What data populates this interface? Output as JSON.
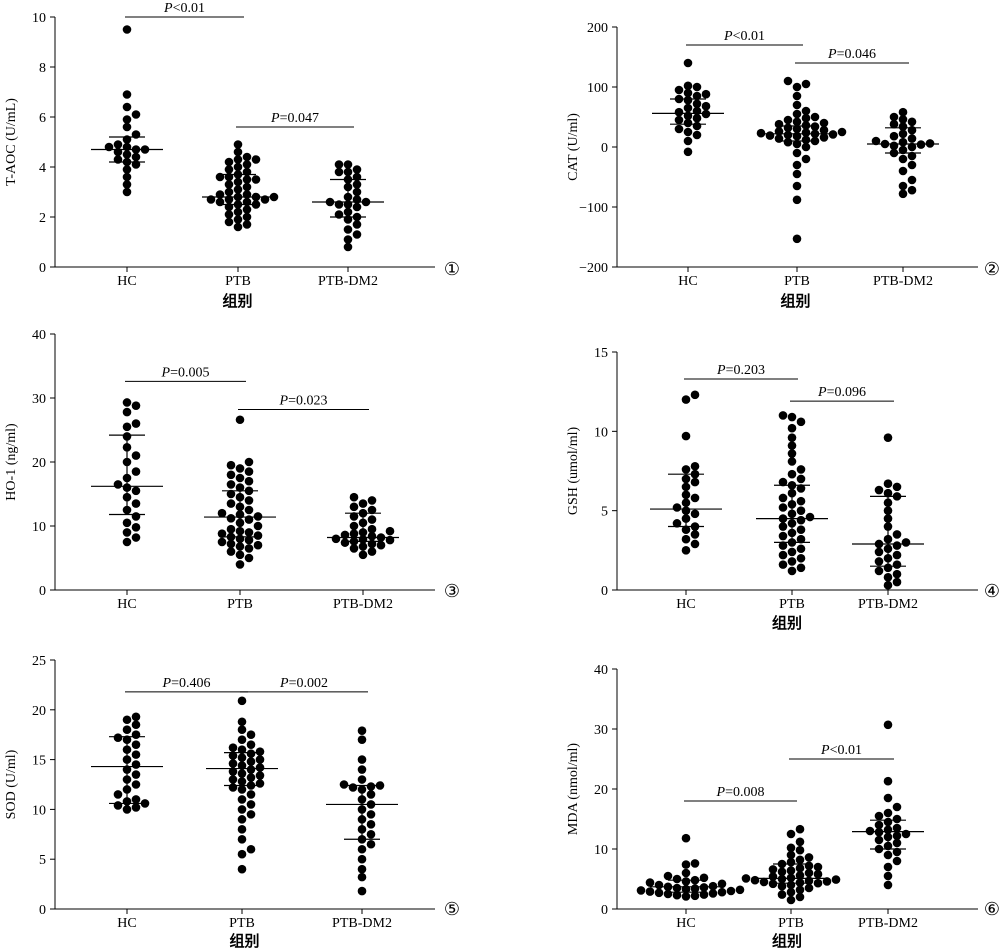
{
  "chart_data": [
    {
      "type": "scatter",
      "panel_label": "①",
      "ylabel": "T-AOC (U/mL)",
      "xlabel": "组别",
      "categories": [
        "HC",
        "PTB",
        "PTB-DM2"
      ],
      "ylim": [
        0,
        10
      ],
      "yticks": [
        "0",
        "2",
        "4",
        "6",
        "8",
        "10"
      ],
      "groups": [
        {
          "name": "HC",
          "median": 4.7,
          "q1": 4.2,
          "q3": 5.2,
          "values": [
            9.5,
            6.9,
            6.4,
            6.1,
            5.9,
            5.6,
            5.3,
            5.1,
            4.9,
            4.8,
            4.8,
            4.7,
            4.7,
            4.6,
            4.5,
            4.4,
            4.3,
            4.2,
            4.1,
            3.9,
            3.6,
            3.3,
            3.0
          ]
        },
        {
          "name": "PTB",
          "median": 2.8,
          "q1": 2.5,
          "q3": 3.7,
          "values": [
            4.9,
            4.6,
            4.4,
            4.3,
            4.3,
            4.2,
            4.1,
            4.0,
            3.9,
            3.8,
            3.7,
            3.6,
            3.6,
            3.5,
            3.5,
            3.4,
            3.3,
            3.2,
            3.1,
            3.0,
            2.9,
            2.9,
            2.8,
            2.8,
            2.8,
            2.7,
            2.7,
            2.7,
            2.6,
            2.6,
            2.5,
            2.5,
            2.4,
            2.3,
            2.2,
            2.1,
            2.0,
            1.9,
            1.8,
            1.7,
            1.6
          ]
        },
        {
          "name": "PTB-DM2",
          "median": 2.6,
          "q1": 2.0,
          "q3": 3.5,
          "values": [
            4.1,
            4.1,
            3.9,
            3.8,
            3.8,
            3.6,
            3.5,
            3.3,
            3.2,
            3.0,
            2.8,
            2.7,
            2.6,
            2.6,
            2.5,
            2.5,
            2.4,
            2.2,
            2.1,
            2.0,
            1.9,
            1.7,
            1.5,
            1.3,
            1.1,
            0.8
          ]
        }
      ],
      "comparisons": [
        {
          "from": "HC",
          "to": "PTB",
          "y": 10.0,
          "label_pre": "P",
          "label_post": "<0.01"
        },
        {
          "from": "PTB",
          "to": "PTB-DM2",
          "y": 5.6,
          "label_pre": "P",
          "label_post": "=0.047"
        }
      ]
    },
    {
      "type": "scatter",
      "panel_label": "②",
      "ylabel": "CAT (U/ml)",
      "xlabel": "组别",
      "categories": [
        "HC",
        "PTB",
        "PTB-DM2"
      ],
      "ylim": [
        -200,
        200
      ],
      "yticks": [
        "−200",
        "−100",
        "0",
        "100",
        "200"
      ],
      "groups": [
        {
          "name": "HC",
          "median": 56,
          "q1": 38,
          "q3": 80,
          "values": [
            140,
            102,
            100,
            95,
            90,
            88,
            85,
            80,
            78,
            72,
            68,
            65,
            60,
            58,
            55,
            52,
            48,
            45,
            40,
            35,
            30,
            25,
            20,
            10,
            -8
          ]
        },
        {
          "name": "PTB",
          "median": 22,
          "q1": 10,
          "q3": 35,
          "values": [
            110,
            105,
            100,
            85,
            70,
            60,
            55,
            50,
            48,
            45,
            42,
            40,
            38,
            36,
            34,
            32,
            30,
            28,
            26,
            25,
            24,
            23,
            22,
            21,
            20,
            19,
            18,
            16,
            14,
            12,
            10,
            8,
            5,
            0,
            -10,
            -20,
            -30,
            -45,
            -65,
            -88,
            -153
          ]
        },
        {
          "name": "PTB-DM2",
          "median": 5,
          "q1": -10,
          "q3": 32,
          "values": [
            58,
            50,
            46,
            42,
            38,
            34,
            28,
            22,
            18,
            14,
            10,
            8,
            6,
            5,
            4,
            2,
            0,
            -5,
            -10,
            -15,
            -20,
            -30,
            -40,
            -55,
            -65,
            -72,
            -78
          ]
        }
      ],
      "comparisons": [
        {
          "from": "HC",
          "to": "PTB",
          "y": 170,
          "label_pre": "P",
          "label_post": "<0.01"
        },
        {
          "from": "PTB",
          "to": "PTB-DM2",
          "y": 140,
          "label_pre": "P",
          "label_post": "=0.046"
        }
      ]
    },
    {
      "type": "scatter",
      "panel_label": "③",
      "ylabel": "HO-1 (ng/ml)",
      "xlabel": "",
      "categories": [
        "HC",
        "PTB",
        "PTB-DM2"
      ],
      "ylim": [
        0,
        40
      ],
      "yticks": [
        "0",
        "10",
        "20",
        "30",
        "40"
      ],
      "groups": [
        {
          "name": "HC",
          "median": 16.2,
          "q1": 11.8,
          "q3": 24.2,
          "values": [
            29.3,
            28.8,
            27.8,
            26.0,
            25.5,
            24.0,
            22.3,
            21.0,
            20.0,
            18.5,
            17.5,
            16.5,
            16.0,
            15.5,
            14.5,
            13.5,
            12.5,
            11.5,
            10.5,
            9.8,
            9.0,
            8.2,
            7.5
          ]
        },
        {
          "name": "PTB",
          "median": 11.4,
          "q1": 8.3,
          "q3": 15.5,
          "values": [
            26.6,
            20.0,
            19.5,
            19.0,
            18.5,
            18.0,
            17.5,
            17.0,
            16.5,
            16.0,
            15.5,
            15.0,
            14.5,
            14.0,
            13.5,
            13.0,
            12.5,
            12.0,
            11.8,
            11.5,
            11.2,
            11.0,
            10.5,
            10.0,
            9.5,
            9.2,
            9.0,
            8.8,
            8.5,
            8.3,
            8.0,
            7.8,
            7.5,
            7.2,
            7.0,
            6.8,
            6.5,
            6.0,
            5.5,
            5.0,
            4.0
          ]
        },
        {
          "name": "PTB-DM2",
          "median": 8.2,
          "q1": 7.6,
          "q3": 12.0,
          "values": [
            14.5,
            14.0,
            13.5,
            13.0,
            12.5,
            12.0,
            11.5,
            11.0,
            10.5,
            10.0,
            9.5,
            9.2,
            9.0,
            8.8,
            8.6,
            8.4,
            8.2,
            8.0,
            7.9,
            7.8,
            7.6,
            7.4,
            7.2,
            7.0,
            6.8,
            6.5,
            6.0,
            5.5
          ]
        }
      ],
      "comparisons": [
        {
          "from": "HC",
          "to": "PTB",
          "y": 32.6,
          "label_pre": "P",
          "label_post": "=0.005"
        },
        {
          "from": "PTB",
          "to": "PTB-DM2",
          "y": 28.2,
          "label_pre": "P",
          "label_post": "=0.023"
        }
      ]
    },
    {
      "type": "scatter",
      "panel_label": "④",
      "ylabel": "GSH (umol/ml)",
      "xlabel": "组别",
      "categories": [
        "HC",
        "PTB",
        "PTB-DM2"
      ],
      "ylim": [
        0,
        15
      ],
      "yticks": [
        "0",
        "5",
        "10",
        "15"
      ],
      "groups": [
        {
          "name": "HC",
          "median": 5.1,
          "q1": 4.0,
          "q3": 7.3,
          "values": [
            12.3,
            12.0,
            9.7,
            7.8,
            7.6,
            7.3,
            7.0,
            6.8,
            6.5,
            6.0,
            5.8,
            5.5,
            5.2,
            5.0,
            4.8,
            4.5,
            4.2,
            4.0,
            3.8,
            3.5,
            3.2,
            2.9,
            2.5
          ]
        },
        {
          "name": "PTB",
          "median": 4.5,
          "q1": 3.0,
          "q3": 6.6,
          "values": [
            11.0,
            10.9,
            10.6,
            10.2,
            9.6,
            9.1,
            8.6,
            8.1,
            7.6,
            7.3,
            7.0,
            6.8,
            6.6,
            6.4,
            6.1,
            5.8,
            5.6,
            5.4,
            5.2,
            5.0,
            4.8,
            4.6,
            4.5,
            4.4,
            4.2,
            4.0,
            3.8,
            3.6,
            3.4,
            3.2,
            3.0,
            2.8,
            2.6,
            2.4,
            2.2,
            2.0,
            1.8,
            1.6,
            1.4,
            1.2
          ]
        },
        {
          "name": "PTB-DM2",
          "median": 2.9,
          "q1": 1.5,
          "q3": 5.9,
          "values": [
            9.6,
            6.7,
            6.5,
            6.3,
            6.1,
            5.9,
            5.5,
            5.0,
            4.5,
            4.0,
            3.5,
            3.2,
            3.0,
            2.9,
            2.8,
            2.6,
            2.4,
            2.2,
            2.0,
            1.8,
            1.6,
            1.4,
            1.2,
            1.0,
            0.8,
            0.5,
            0.3
          ]
        }
      ],
      "comparisons": [
        {
          "from": "HC",
          "to": "PTB",
          "y": 13.3,
          "label_pre": "P",
          "label_post": "=0.203"
        },
        {
          "from": "PTB",
          "to": "PTB-DM2",
          "y": 11.9,
          "label_pre": "P",
          "label_post": "=0.096"
        }
      ]
    },
    {
      "type": "scatter",
      "panel_label": "⑤",
      "ylabel": "SOD (U/ml)",
      "xlabel": "组别",
      "categories": [
        "HC",
        "PTB",
        "PTB-DM2"
      ],
      "ylim": [
        0,
        25
      ],
      "yticks": [
        "0",
        "5",
        "10",
        "15",
        "20",
        "25"
      ],
      "groups": [
        {
          "name": "HC",
          "median": 14.3,
          "q1": 10.6,
          "q3": 17.3,
          "values": [
            19.3,
            19.0,
            18.5,
            18.0,
            17.5,
            17.2,
            17.0,
            16.5,
            16.0,
            15.5,
            15.0,
            14.5,
            14.0,
            13.5,
            13.0,
            12.5,
            12.0,
            11.5,
            11.0,
            10.8,
            10.6,
            10.4,
            10.2,
            10.0
          ]
        },
        {
          "name": "PTB",
          "median": 14.1,
          "q1": 12.4,
          "q3": 15.7,
          "values": [
            20.9,
            18.8,
            18.0,
            17.5,
            17.0,
            16.5,
            16.2,
            16.0,
            15.8,
            15.6,
            15.4,
            15.2,
            15.0,
            14.8,
            14.6,
            14.4,
            14.2,
            14.0,
            13.8,
            13.6,
            13.4,
            13.2,
            13.0,
            12.8,
            12.6,
            12.4,
            12.2,
            12.0,
            11.5,
            11.0,
            10.5,
            10.0,
            9.5,
            9.0,
            8.0,
            7.0,
            6.0,
            5.5,
            4.0
          ]
        },
        {
          "name": "PTB-DM2",
          "median": 10.5,
          "q1": 7.0,
          "q3": 12.4,
          "values": [
            17.9,
            17.0,
            15.0,
            14.0,
            13.0,
            12.5,
            12.4,
            12.3,
            12.2,
            12.0,
            11.5,
            11.0,
            10.5,
            10.0,
            9.5,
            9.0,
            8.5,
            8.0,
            7.5,
            7.0,
            6.5,
            6.0,
            5.0,
            4.0,
            3.2,
            1.8
          ]
        }
      ],
      "comparisons": [
        {
          "from": "HC",
          "to": "PTB",
          "y": 21.8,
          "label_pre": "P",
          "label_post": "=0.406"
        },
        {
          "from": "PTB",
          "to": "PTB-DM2",
          "y": 21.8,
          "label_pre": "P",
          "label_post": "=0.002"
        }
      ]
    },
    {
      "type": "scatter",
      "panel_label": "⑥",
      "ylabel": "MDA (nmol/ml)",
      "xlabel": "组别",
      "categories": [
        "HC",
        "PTB",
        "PTB-DM2"
      ],
      "ylim": [
        0,
        40
      ],
      "yticks": [
        "0",
        "10",
        "20",
        "30",
        "40"
      ],
      "groups": [
        {
          "name": "HC",
          "median": 3.7,
          "q1": 2.8,
          "q3": 4.8,
          "values": [
            11.8,
            7.6,
            7.4,
            6.0,
            5.5,
            5.2,
            5.0,
            4.8,
            4.6,
            4.4,
            4.2,
            4.0,
            3.8,
            3.7,
            3.6,
            3.5,
            3.4,
            3.3,
            3.2,
            3.1,
            3.0,
            2.9,
            2.8,
            2.7,
            2.6,
            2.5,
            2.4,
            2.3,
            2.2,
            2.1
          ]
        },
        {
          "name": "PTB",
          "median": 5.1,
          "q1": 4.3,
          "q3": 7.5,
          "values": [
            13.3,
            12.5,
            11.2,
            10.2,
            9.8,
            9.0,
            8.6,
            8.2,
            7.8,
            7.5,
            7.2,
            7.0,
            6.8,
            6.6,
            6.4,
            6.2,
            6.0,
            5.8,
            5.6,
            5.4,
            5.2,
            5.1,
            5.0,
            4.9,
            4.8,
            4.7,
            4.6,
            4.5,
            4.4,
            4.3,
            4.2,
            4.0,
            3.8,
            3.5,
            3.2,
            2.8,
            2.4,
            2.0,
            1.5
          ]
        },
        {
          "name": "PTB-DM2",
          "median": 12.9,
          "q1": 10.0,
          "q3": 14.8,
          "values": [
            30.7,
            21.3,
            18.5,
            17.0,
            16.0,
            15.5,
            15.0,
            14.5,
            14.0,
            13.5,
            13.2,
            13.0,
            12.8,
            12.5,
            12.2,
            12.0,
            11.5,
            11.0,
            10.5,
            10.0,
            9.5,
            9.0,
            8.0,
            7.0,
            5.5,
            4.0
          ]
        }
      ],
      "comparisons": [
        {
          "from": "HC",
          "to": "PTB",
          "y": 18.0,
          "label_pre": "P",
          "label_post": "=0.008"
        },
        {
          "from": "PTB",
          "to": "PTB-DM2",
          "y": 25.0,
          "label_pre": "P",
          "label_post": "<0.01"
        }
      ]
    }
  ]
}
